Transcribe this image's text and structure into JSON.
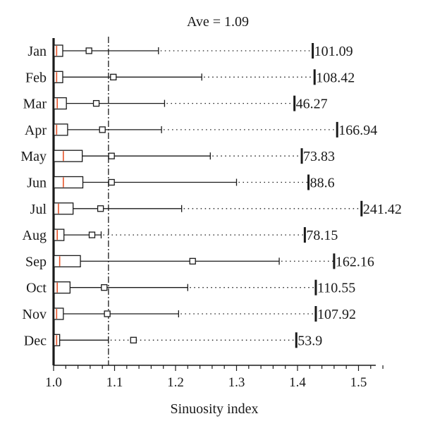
{
  "chart_data": {
    "type": "boxplot",
    "title": "Ave = 1.09",
    "xlabel": "Sinuosity index",
    "ylabel": "",
    "xlim": [
      1.0,
      1.55
    ],
    "x_ticks": [
      "1.0",
      "1.1",
      "1.2",
      "1.3",
      "1.4",
      "1.5"
    ],
    "mean_reference_line": 1.09,
    "categories": [
      "Jan",
      "Feb",
      "Mar",
      "Apr",
      "May",
      "Jun",
      "Jul",
      "Aug",
      "Sep",
      "Oct",
      "Nov",
      "Dec"
    ],
    "series": [
      {
        "label": "Jan",
        "min": 1.0,
        "q1": 1.003,
        "median": 1.005,
        "q3": 1.015,
        "mean": 1.058,
        "whisker_high": 1.172,
        "max": 1.425,
        "max_label": "101.09"
      },
      {
        "label": "Feb",
        "min": 1.0,
        "q1": 1.003,
        "median": 1.005,
        "q3": 1.015,
        "mean": 1.098,
        "whisker_high": 1.243,
        "max": 1.428,
        "max_label": "108.42"
      },
      {
        "label": "Mar",
        "min": 1.0,
        "q1": 1.003,
        "median": 1.006,
        "q3": 1.021,
        "mean": 1.07,
        "whisker_high": 1.182,
        "max": 1.395,
        "max_label": "46.27"
      },
      {
        "label": "Apr",
        "min": 1.0,
        "q1": 1.003,
        "median": 1.005,
        "q3": 1.023,
        "mean": 1.08,
        "whisker_high": 1.177,
        "max": 1.465,
        "max_label": "166.94"
      },
      {
        "label": "May",
        "min": 1.0,
        "q1": 1.003,
        "median": 1.016,
        "q3": 1.047,
        "mean": 1.095,
        "whisker_high": 1.257,
        "max": 1.407,
        "max_label": "73.83"
      },
      {
        "label": "Jun",
        "min": 1.0,
        "q1": 1.003,
        "median": 1.016,
        "q3": 1.048,
        "mean": 1.095,
        "whisker_high": 1.3,
        "max": 1.418,
        "max_label": "88.6"
      },
      {
        "label": "Jul",
        "min": 1.0,
        "q1": 1.003,
        "median": 1.008,
        "q3": 1.032,
        "mean": 1.077,
        "whisker_high": 1.21,
        "max": 1.505,
        "max_label": "241.42"
      },
      {
        "label": "Aug",
        "min": 1.0,
        "q1": 1.003,
        "median": 1.006,
        "q3": 1.017,
        "mean": 1.063,
        "whisker_high": 1.078,
        "max": 1.412,
        "max_label": "78.15"
      },
      {
        "label": "Sep",
        "min": 1.0,
        "q1": 1.003,
        "median": 1.01,
        "q3": 1.044,
        "mean": 1.228,
        "whisker_high": 1.37,
        "max": 1.46,
        "max_label": "162.16"
      },
      {
        "label": "Oct",
        "min": 1.0,
        "q1": 1.003,
        "median": 1.006,
        "q3": 1.027,
        "mean": 1.083,
        "whisker_high": 1.22,
        "max": 1.43,
        "max_label": "110.55"
      },
      {
        "label": "Nov",
        "min": 1.0,
        "q1": 1.003,
        "median": 1.005,
        "q3": 1.016,
        "mean": 1.088,
        "whisker_high": 1.205,
        "max": 1.43,
        "max_label": "107.92"
      },
      {
        "label": "Dec",
        "min": 1.0,
        "q1": 1.003,
        "median": 1.005,
        "q3": 1.01,
        "mean": 1.131,
        "whisker_high": 1.09,
        "max": 1.398,
        "max_label": "53.9"
      }
    ],
    "grid": false,
    "legend": "none"
  },
  "colors": {
    "ink": "#1a1a1a",
    "median_line": "#e8542a",
    "background": "#ffffff"
  }
}
